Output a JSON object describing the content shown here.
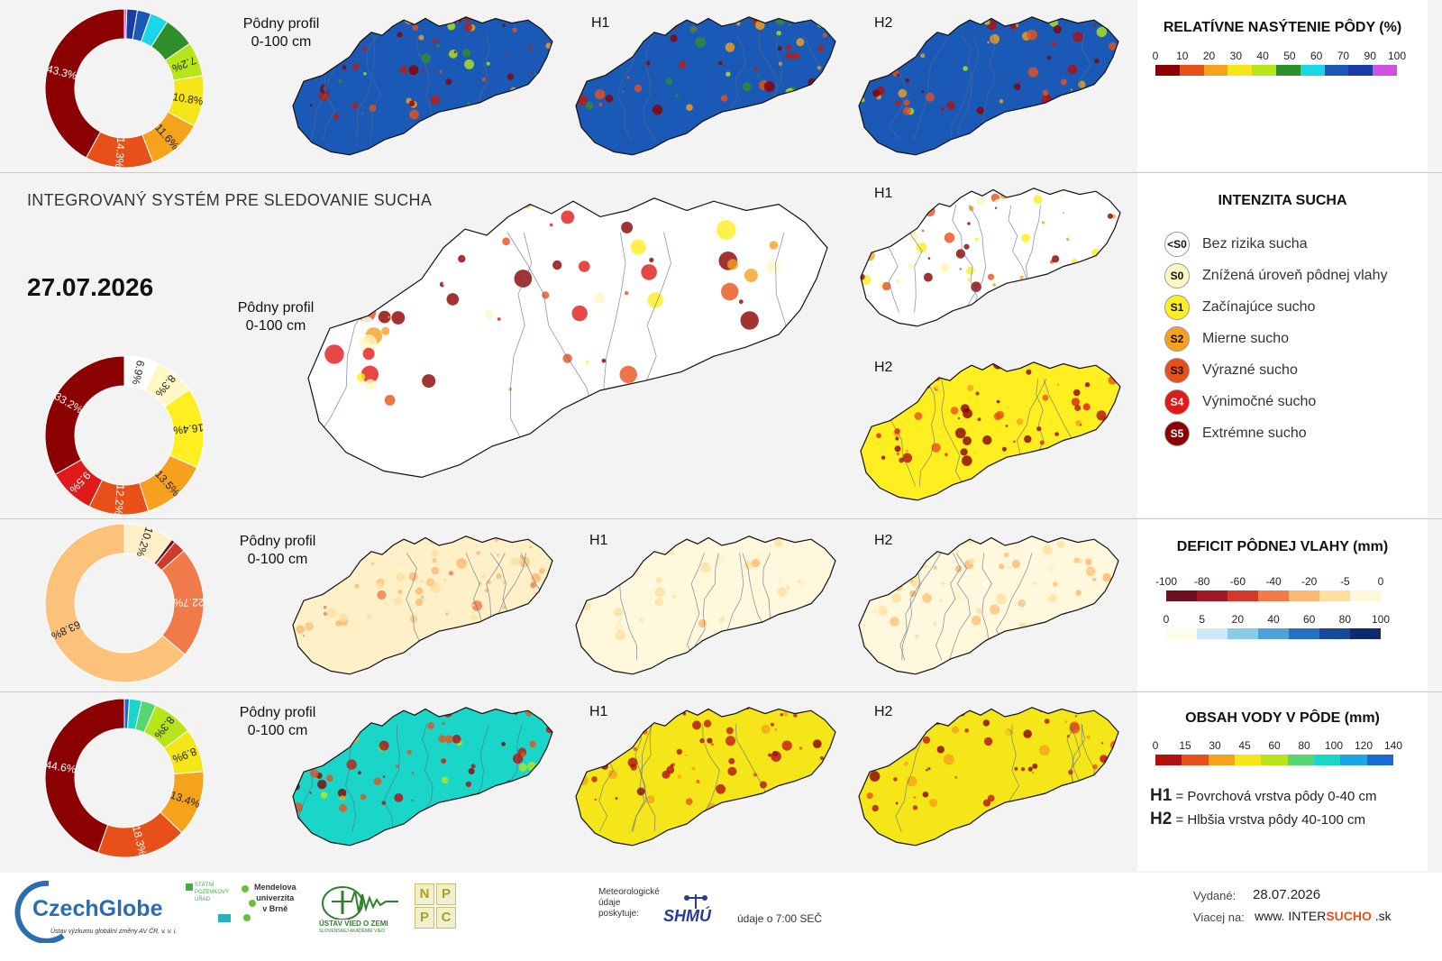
{
  "header": {
    "system_title": "INTEGROVANÝ SYSTÉM PRE SLEDOVANIE SUCHA",
    "date": "27.07.2026"
  },
  "sections": [
    {
      "id": "saturation",
      "profile_label": "Pôdny profil\n0-100 cm",
      "h1_label": "H1",
      "h2_label": "H2",
      "legend_title": "RELATÍVNE NASÝTENIE PÔDY (%)",
      "legend_ticks": [
        "0",
        "10",
        "20",
        "30",
        "40",
        "50",
        "60",
        "70",
        "90",
        "100"
      ],
      "legend_colors": [
        "#8b0000",
        "#e8501a",
        "#f5a31a",
        "#f5e61a",
        "#b6e61a",
        "#2f8f2a",
        "#1ad6e6",
        "#1a5ab6",
        "#1a3aa6",
        "#d050e0"
      ],
      "donut": {
        "values": [
          43.3,
          14.3,
          11.6,
          10.8,
          7.2,
          6.5,
          3.8,
          2.9,
          2.2,
          0.5
        ],
        "colors": [
          "#8b0000",
          "#e8501a",
          "#f5a31a",
          "#f5e61a",
          "#b6e61a",
          "#2f8f2a",
          "#1ad6e6",
          "#1a5ab6",
          "#1a3aa6",
          "#d050e0"
        ],
        "labels": [
          "43.3%",
          "14.3%",
          "11.6%",
          "10.8%",
          "7.2%",
          "",
          "",
          "",
          "",
          ""
        ]
      }
    },
    {
      "id": "drought",
      "profile_label": "Pôdny profil\n0-100 cm",
      "h1_label": "H1",
      "h2_label": "H2",
      "legend_title": "INTENZITA SUCHA",
      "items": [
        {
          "code": "<S0",
          "label": "Bez rizika sucha",
          "color": "#ffffff"
        },
        {
          "code": "S0",
          "label": "Znížená úroveň pôdnej vlahy",
          "color": "#fff8c4"
        },
        {
          "code": "S1",
          "label": "Začínajúce sucho",
          "color": "#ffee20"
        },
        {
          "code": "S2",
          "label": "Mierne sucho",
          "color": "#f5a020"
        },
        {
          "code": "S3",
          "label": "Výrazné sucho",
          "color": "#e8501a"
        },
        {
          "code": "S4",
          "label": "Výnimočné sucho",
          "color": "#e01a1a"
        },
        {
          "code": "S5",
          "label": "Extrémne sucho",
          "color": "#8b0000"
        }
      ],
      "donut": {
        "values": [
          33.2,
          9.5,
          12.2,
          13.5,
          16.4,
          8.3,
          6.9
        ],
        "colors": [
          "#8b0000",
          "#e01a1a",
          "#e8501a",
          "#f5a020",
          "#ffee20",
          "#fff8c4",
          "#ffffff"
        ],
        "labels": [
          "33.2%",
          "9.5%",
          "12.2%",
          "13.5%",
          "16.4%",
          "8.3%",
          "6.9%"
        ]
      }
    },
    {
      "id": "deficit",
      "profile_label": "Pôdny profil\n0-100 cm",
      "h1_label": "H1",
      "h2_label": "H2",
      "legend_title": "DEFICIT PÔDNEJ VLAHY (mm)",
      "legend_ticks_neg": [
        "-100",
        "-80",
        "-60",
        "-40",
        "-20",
        "-5",
        "0"
      ],
      "legend_colors_neg": [
        "#6e1020",
        "#9e1a28",
        "#d03a2a",
        "#f07a4a",
        "#fbb870",
        "#fde0a0",
        "#fff8dc"
      ],
      "legend_ticks_pos": [
        "0",
        "5",
        "20",
        "40",
        "60",
        "80",
        "100"
      ],
      "legend_colors_pos": [
        "#fdfbe8",
        "#cfe8f5",
        "#8ccbe8",
        "#4ea2d8",
        "#2570c0",
        "#17489a",
        "#0d2a6e"
      ],
      "donut": {
        "values": [
          63.8,
          22.7,
          2.5,
          0.8,
          10.2
        ],
        "colors": [
          "#fdc27a",
          "#f07a4a",
          "#d03a2a",
          "#6e1020",
          "#fff0c8"
        ],
        "labels": [
          "63.8%",
          "22.7%",
          "",
          "",
          "10.2%"
        ]
      }
    },
    {
      "id": "water",
      "profile_label": "Pôdny profil\n0-100 cm",
      "h1_label": "H1",
      "h2_label": "H2",
      "legend_title": "OBSAH VODY V PÔDE (mm)",
      "legend_ticks": [
        "0",
        "15",
        "30",
        "45",
        "60",
        "80",
        "100",
        "120",
        "140"
      ],
      "legend_colors": [
        "#b30f0f",
        "#e8501a",
        "#f5a31a",
        "#f5e61a",
        "#b6e61a",
        "#55d670",
        "#1ad6c8",
        "#1aa6e6",
        "#1a6ad6"
      ],
      "notes": [
        {
          "key": "H1",
          "text": "= Povrchová vrstva pôdy 0-40 cm"
        },
        {
          "key": "H2",
          "text": "= Hlbšia vrstva pôdy 40-100 cm"
        }
      ],
      "donut": {
        "values": [
          44.6,
          18.3,
          13.4,
          8.9,
          8.3,
          3.0,
          2.5,
          1.0
        ],
        "colors": [
          "#8b0000",
          "#e8501a",
          "#f5a31a",
          "#f5e61a",
          "#b6e61a",
          "#55d670",
          "#1ad6c8",
          "#1a6ad6"
        ],
        "labels": [
          "44.6%",
          "18.3%",
          "13.4%",
          "8.9%",
          "8.3%",
          "",
          "",
          ""
        ]
      }
    }
  ],
  "footer": {
    "czechglobe": "CzechGlobe",
    "czechglobe_sub": "Ústav výzkumu globální změny AV ČR, v. v. i.",
    "spu": "STÁTNÍ\nPOZEMKOVÝ\nÚŘAD",
    "mendel": "Mendelova\nuniverzita\nv Brně",
    "uvz": "ÚSTAV VIED O ZEMI",
    "uvz_sub": "SLOVENSKEJ AKADÉMIE VIED",
    "nppc": [
      "N",
      "P",
      "P",
      "C"
    ],
    "meteo": "Meteorologické\núdaje\nposkytuje:",
    "shmu": "SHMÚ",
    "data_time": "údaje o 7:00 SEČ",
    "issued_label": "Vydané:",
    "issued_date": "28.07.2026",
    "more_label": "Viacej na:",
    "website_pre": "www. INTER",
    "website_bold": "SUCHO",
    "website_post": " .sk"
  }
}
